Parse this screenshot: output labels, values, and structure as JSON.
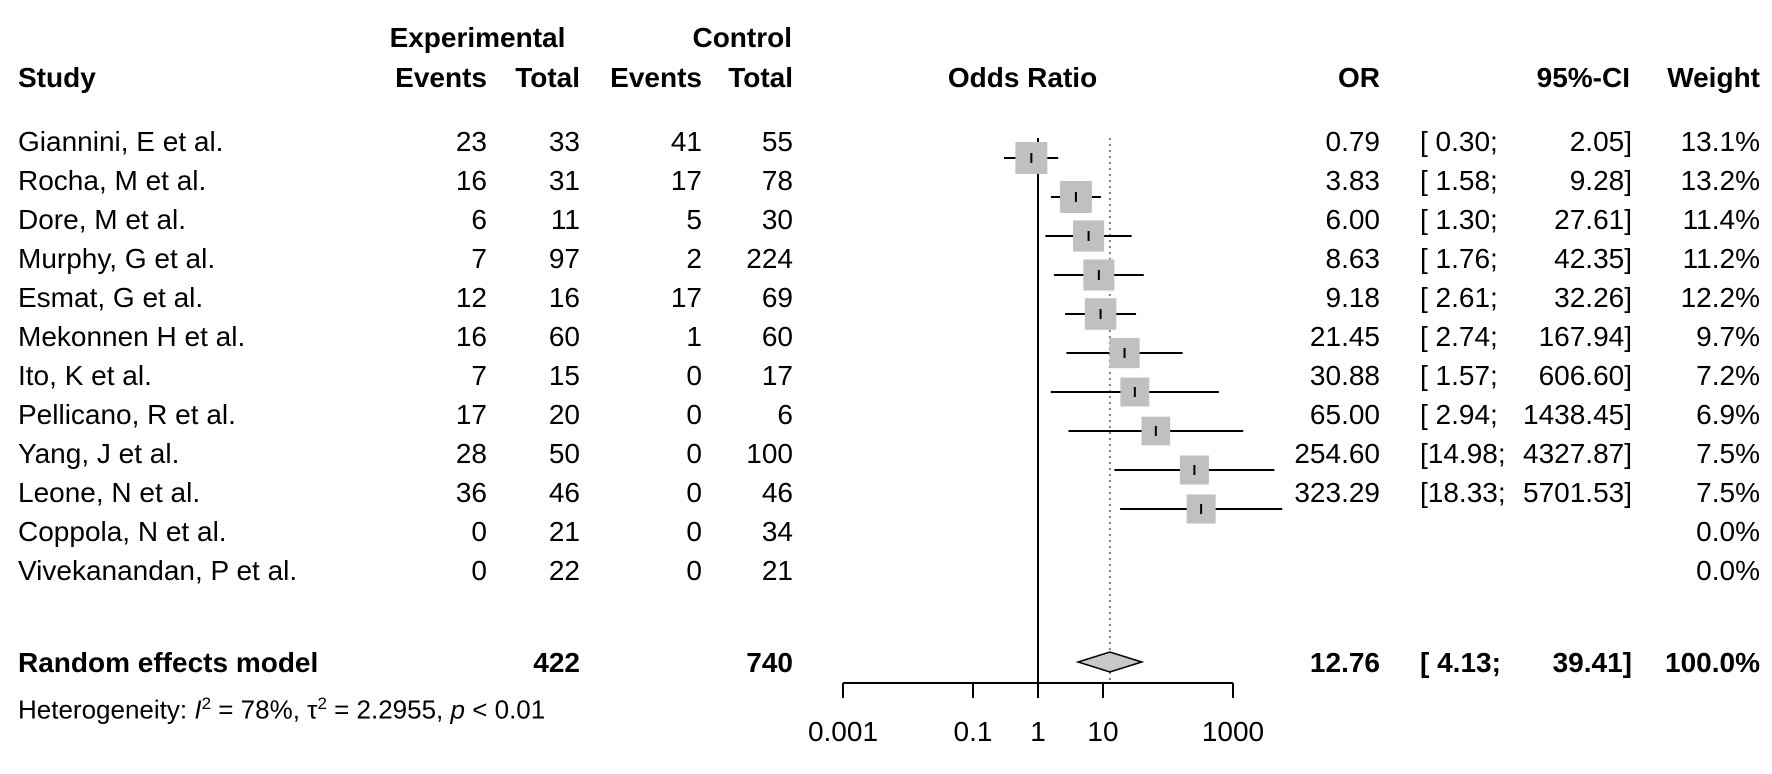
{
  "header": {
    "group1": "Experimental",
    "group2": "Control",
    "study": "Study",
    "events": "Events",
    "total": "Total",
    "plot_title": "Odds Ratio",
    "or": "OR",
    "ci": "95%-CI",
    "weight": "Weight"
  },
  "rows": [
    {
      "study": "Giannini, E et al.",
      "e_events": "23",
      "e_total": "33",
      "c_events": "41",
      "c_total": "55",
      "or": "0.79",
      "ci_low": "[ 0.30;",
      "ci_high": "2.05]",
      "weight": "13.1%"
    },
    {
      "study": "Rocha, M et al.",
      "e_events": "16",
      "e_total": "31",
      "c_events": "17",
      "c_total": "78",
      "or": "3.83",
      "ci_low": "[ 1.58;",
      "ci_high": "9.28]",
      "weight": "13.2%"
    },
    {
      "study": "Dore, M et al.",
      "e_events": "6",
      "e_total": "11",
      "c_events": "5",
      "c_total": "30",
      "or": "6.00",
      "ci_low": "[ 1.30;",
      "ci_high": "27.61]",
      "weight": "11.4%"
    },
    {
      "study": "Murphy, G et al.",
      "e_events": "7",
      "e_total": "97",
      "c_events": "2",
      "c_total": "224",
      "or": "8.63",
      "ci_low": "[ 1.76;",
      "ci_high": "42.35]",
      "weight": "11.2%"
    },
    {
      "study": "Esmat, G et al.",
      "e_events": "12",
      "e_total": "16",
      "c_events": "17",
      "c_total": "69",
      "or": "9.18",
      "ci_low": "[ 2.61;",
      "ci_high": "32.26]",
      "weight": "12.2%"
    },
    {
      "study": "Mekonnen H et al.",
      "e_events": "16",
      "e_total": "60",
      "c_events": "1",
      "c_total": "60",
      "or": "21.45",
      "ci_low": "[ 2.74;",
      "ci_high": "167.94]",
      "weight": "9.7%"
    },
    {
      "study": "Ito, K et al.",
      "e_events": "7",
      "e_total": "15",
      "c_events": "0",
      "c_total": "17",
      "or": "30.88",
      "ci_low": "[ 1.57;",
      "ci_high": "606.60]",
      "weight": "7.2%"
    },
    {
      "study": "Pellicano, R et al.",
      "e_events": "17",
      "e_total": "20",
      "c_events": "0",
      "c_total": "6",
      "or": "65.00",
      "ci_low": "[ 2.94;",
      "ci_high": "1438.45]",
      "weight": "6.9%"
    },
    {
      "study": "Yang, J et al.",
      "e_events": "28",
      "e_total": "50",
      "c_events": "0",
      "c_total": "100",
      "or": "254.60",
      "ci_low": "[14.98;",
      "ci_high": "4327.87]",
      "weight": "7.5%"
    },
    {
      "study": "Leone, N et al.",
      "e_events": "36",
      "e_total": "46",
      "c_events": "0",
      "c_total": "46",
      "or": "323.29",
      "ci_low": "[18.33;",
      "ci_high": "5701.53]",
      "weight": "7.5%"
    },
    {
      "study": "Coppola, N et al.",
      "e_events": "0",
      "e_total": "21",
      "c_events": "0",
      "c_total": "34",
      "or": "",
      "ci_low": "",
      "ci_high": "",
      "weight": "0.0%"
    },
    {
      "study": "Vivekanandan, P et al.",
      "e_events": "0",
      "e_total": "22",
      "c_events": "0",
      "c_total": "21",
      "or": "",
      "ci_low": "",
      "ci_high": "",
      "weight": "0.0%"
    }
  ],
  "summary": {
    "label": "Random effects model",
    "e_total": "422",
    "c_total": "740",
    "or": "12.76",
    "ci_low": "[ 4.13;",
    "ci_high": "39.41]",
    "weight": "100.0%"
  },
  "heterogeneity": {
    "prefix": "Heterogeneity: ",
    "i2_symbol": "I",
    "i2_value": " = 78%, ",
    "tau_symbol": "τ",
    "tau_value": " = 2.2955, ",
    "p_symbol": "p",
    "p_value": " < 0.01"
  },
  "colors": {
    "box": "#c0c0c0",
    "diamond": "#c8c8c8",
    "line": "#000000",
    "reference": "#808080"
  },
  "chart_data": {
    "type": "forest",
    "xlabel": "",
    "x_scale": "log",
    "xlim": [
      0.001,
      1000
    ],
    "xticks": [
      0.001,
      0.1,
      1,
      10,
      1000
    ],
    "xtick_labels": [
      "0.001",
      "0.1",
      "1",
      "10",
      "1000"
    ],
    "null_value": 1,
    "series": [
      {
        "study": "Giannini, E et al.",
        "or": 0.79,
        "lower": 0.3,
        "upper": 2.05,
        "weight": 13.1
      },
      {
        "study": "Rocha, M et al.",
        "or": 3.83,
        "lower": 1.58,
        "upper": 9.28,
        "weight": 13.2
      },
      {
        "study": "Dore, M et al.",
        "or": 6.0,
        "lower": 1.3,
        "upper": 27.61,
        "weight": 11.4
      },
      {
        "study": "Murphy, G et al.",
        "or": 8.63,
        "lower": 1.76,
        "upper": 42.35,
        "weight": 11.2
      },
      {
        "study": "Esmat, G et al.",
        "or": 9.18,
        "lower": 2.61,
        "upper": 32.26,
        "weight": 12.2
      },
      {
        "study": "Mekonnen H et al.",
        "or": 21.45,
        "lower": 2.74,
        "upper": 167.94,
        "weight": 9.7
      },
      {
        "study": "Ito, K et al.",
        "or": 30.88,
        "lower": 1.57,
        "upper": 606.6,
        "weight": 7.2
      },
      {
        "study": "Pellicano, R et al.",
        "or": 65.0,
        "lower": 2.94,
        "upper": 1438.45,
        "weight": 6.9
      },
      {
        "study": "Yang, J et al.",
        "or": 254.6,
        "lower": 14.98,
        "upper": 4327.87,
        "weight": 7.5
      },
      {
        "study": "Leone, N et al.",
        "or": 323.29,
        "lower": 18.33,
        "upper": 5701.53,
        "weight": 7.5
      },
      {
        "study": "Coppola, N et al.",
        "or": null,
        "lower": null,
        "upper": null,
        "weight": 0.0
      },
      {
        "study": "Vivekanandan, P et al.",
        "or": null,
        "lower": null,
        "upper": null,
        "weight": 0.0
      }
    ],
    "pooled": {
      "or": 12.76,
      "lower": 4.13,
      "upper": 39.41,
      "weight": 100.0
    }
  }
}
